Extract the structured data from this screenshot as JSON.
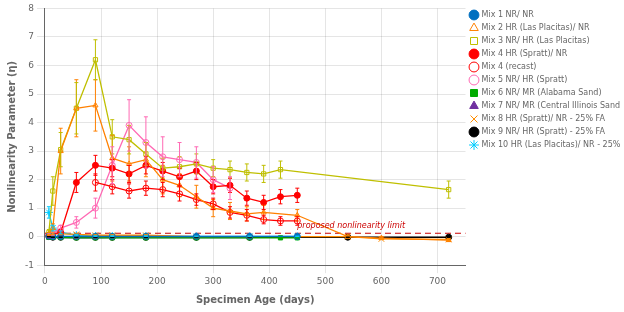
{
  "chart_data": {
    "type": "line",
    "xlabel": "Specimen Age (days)",
    "ylabel": "Nonlinearity Parameter (η)",
    "xlim": [
      0,
      750
    ],
    "ylim": [
      -1,
      8
    ],
    "xticks": [
      0,
      100,
      200,
      300,
      400,
      500,
      600,
      700
    ],
    "yticks": [
      -1,
      0,
      1,
      2,
      3,
      4,
      5,
      6,
      7,
      8
    ],
    "grid": true,
    "legend": "upper right",
    "reference_lines": [
      {
        "y": 0.12,
        "color": "#CC0000",
        "line_style": "dashed"
      }
    ],
    "annotations": [
      {
        "text": "proposed nonlinearity limit",
        "x": 450,
        "y": 0.22,
        "color": "#CC0000"
      }
    ],
    "series": [
      {
        "name": "Mix 1 NR/ NR",
        "color": "#0070C0",
        "marker": "circle",
        "x": [
          7,
          14,
          28,
          56,
          90,
          120,
          180,
          270,
          365,
          450
        ],
        "values": [
          0.02,
          0.01,
          0.01,
          0.01,
          0.01,
          0.01,
          0.01,
          0.01,
          0.01,
          0.01
        ],
        "yerr": [
          0.005,
          0.005,
          0.005,
          0.005,
          0.005,
          0.005,
          0.005,
          0.005,
          0.005,
          0.005
        ]
      },
      {
        "name": "Mix 2 HR (Las Placitas)/ NR",
        "color": "#FF8000",
        "marker": "open triangle",
        "x": [
          7,
          14,
          28,
          56,
          90,
          120,
          150,
          180,
          210,
          240,
          270,
          300,
          330,
          360,
          390,
          450,
          540,
          600,
          720
        ],
        "values": [
          0.1,
          0.3,
          3.0,
          4.5,
          4.6,
          2.75,
          2.55,
          2.7,
          2.0,
          1.8,
          1.4,
          1.0,
          0.9,
          0.8,
          0.85,
          0.75,
          0.0,
          -0.05,
          -0.12
        ],
        "yerr": [
          0.05,
          0.15,
          0.8,
          1.0,
          0.9,
          0.8,
          0.6,
          0.6,
          0.5,
          0.4,
          0.4,
          0.3,
          0.3,
          0.25,
          0.25,
          0.2,
          0.05,
          0.05,
          0.05
        ]
      },
      {
        "name": "Mix 3 NR/ HR (Las Placitas)",
        "color": "#BFBF00",
        "marker": "open square",
        "x": [
          7,
          14,
          28,
          56,
          90,
          120,
          150,
          180,
          210,
          240,
          270,
          300,
          330,
          360,
          390,
          420,
          720
        ],
        "values": [
          0.15,
          1.6,
          3.05,
          4.5,
          6.2,
          3.5,
          3.4,
          2.9,
          2.4,
          2.45,
          2.55,
          2.4,
          2.35,
          2.25,
          2.2,
          2.35,
          1.65
        ],
        "yerr": [
          0.1,
          0.5,
          0.6,
          0.9,
          0.7,
          0.6,
          0.5,
          0.4,
          0.35,
          0.35,
          0.35,
          0.3,
          0.3,
          0.3,
          0.3,
          0.3,
          0.3
        ]
      },
      {
        "name": "Mix 4 HR (Spratt)/ NR",
        "color": "#FF0000",
        "marker": "circle",
        "x": [
          7,
          28,
          56,
          90,
          120,
          150,
          180,
          210,
          240,
          270,
          300,
          330,
          360,
          390,
          420,
          450
        ],
        "values": [
          0.05,
          0.15,
          1.9,
          2.5,
          2.4,
          2.2,
          2.5,
          2.3,
          2.1,
          2.3,
          1.75,
          1.8,
          1.35,
          1.2,
          1.4,
          1.45
        ],
        "yerr": [
          0.02,
          0.08,
          0.35,
          0.35,
          0.3,
          0.3,
          0.3,
          0.3,
          0.3,
          0.3,
          0.25,
          0.25,
          0.25,
          0.25,
          0.25,
          0.25
        ]
      },
      {
        "name": "Mix 4 (recast)",
        "color": "#FF0000",
        "marker": "open circle",
        "x": [
          90,
          120,
          150,
          180,
          210,
          240,
          270,
          300,
          330,
          360,
          390,
          420,
          450
        ],
        "values": [
          1.9,
          1.75,
          1.6,
          1.7,
          1.65,
          1.5,
          1.3,
          1.15,
          0.85,
          0.75,
          0.6,
          0.55,
          0.55
        ],
        "yerr": [
          0.3,
          0.25,
          0.25,
          0.25,
          0.25,
          0.25,
          0.2,
          0.2,
          0.2,
          0.2,
          0.15,
          0.15,
          0.15
        ]
      },
      {
        "name": "Mix 5 NR/ HR (Spratt)",
        "color": "#FF69B4",
        "marker": "open circle",
        "x": [
          7,
          14,
          28,
          56,
          90,
          120,
          150,
          180,
          210,
          240,
          270,
          300,
          330
        ],
        "values": [
          0.05,
          0.1,
          0.3,
          0.5,
          1.0,
          2.5,
          3.9,
          3.3,
          2.8,
          2.7,
          2.6,
          2.0,
          1.7
        ],
        "yerr": [
          0.05,
          0.05,
          0.1,
          0.2,
          0.35,
          0.65,
          0.9,
          0.9,
          0.7,
          0.6,
          0.55,
          0.45,
          0.4
        ]
      },
      {
        "name": "Mix 6 NR/ MR (Alabama Sand)",
        "color": "#00AA00",
        "marker": "square",
        "x": [
          7,
          14,
          28,
          56,
          90,
          120,
          180,
          270,
          365,
          420,
          450
        ],
        "values": [
          -0.02,
          -0.02,
          -0.03,
          -0.04,
          -0.04,
          -0.04,
          -0.04,
          -0.04,
          -0.04,
          -0.04,
          -0.04
        ],
        "yerr": [
          0.01,
          0.01,
          0.01,
          0.01,
          0.01,
          0.01,
          0.01,
          0.01,
          0.01,
          0.01,
          0.01
        ]
      },
      {
        "name": "Mix 7 NR/ MR (Central Illinois Sand)",
        "color": "#7030A0",
        "marker": "triangle",
        "x": [
          7,
          14,
          28,
          56,
          90,
          120,
          180,
          270,
          365
        ],
        "values": [
          -0.03,
          -0.03,
          -0.03,
          -0.04,
          -0.04,
          -0.03,
          -0.03,
          -0.03,
          -0.03
        ],
        "yerr": [
          0.01,
          0.01,
          0.01,
          0.01,
          0.01,
          0.01,
          0.01,
          0.01,
          0.01
        ]
      },
      {
        "name": "Mix 8 HR (Spratt)/ NR - 25% FA",
        "color": "#FF8C00",
        "marker": "x",
        "x": [
          7,
          14,
          28,
          56,
          90,
          120,
          180,
          270,
          365,
          540,
          600,
          720
        ],
        "values": [
          0.05,
          0.1,
          0.1,
          0.08,
          0.05,
          0.05,
          0.05,
          0.0,
          0.0,
          0.0,
          -0.08,
          -0.1
        ],
        "yerr": [
          0.02,
          0.03,
          0.03,
          0.02,
          0.02,
          0.02,
          0.02,
          0.01,
          0.01,
          0.01,
          0.02,
          0.02
        ]
      },
      {
        "name": "Mix 9 NR/ HR (Spratt) - 25% FA",
        "color": "#000000",
        "marker": "circle",
        "x": [
          7,
          14,
          28,
          56,
          90,
          120,
          180,
          270,
          365,
          540,
          720
        ],
        "values": [
          0.0,
          -0.02,
          -0.02,
          -0.02,
          -0.02,
          -0.02,
          -0.02,
          -0.02,
          -0.02,
          -0.02,
          -0.02
        ],
        "yerr": [
          0.005,
          0.005,
          0.005,
          0.005,
          0.005,
          0.005,
          0.005,
          0.005,
          0.005,
          0.005,
          0.005
        ]
      },
      {
        "name": "Mix 10 HR (Las Placitas)/ NR - 25% FA",
        "color": "#00CCFF",
        "marker": "star",
        "x": [
          7,
          14,
          28,
          56,
          90,
          120,
          180,
          270,
          365,
          450
        ],
        "values": [
          0.85,
          0.3,
          0.15,
          0.05,
          0.02,
          0.02,
          0.02,
          0.01,
          0.01,
          0.01
        ],
        "yerr": [
          0.2,
          0.1,
          0.05,
          0.02,
          0.01,
          0.01,
          0.01,
          0.01,
          0.01,
          0.01
        ]
      }
    ]
  }
}
